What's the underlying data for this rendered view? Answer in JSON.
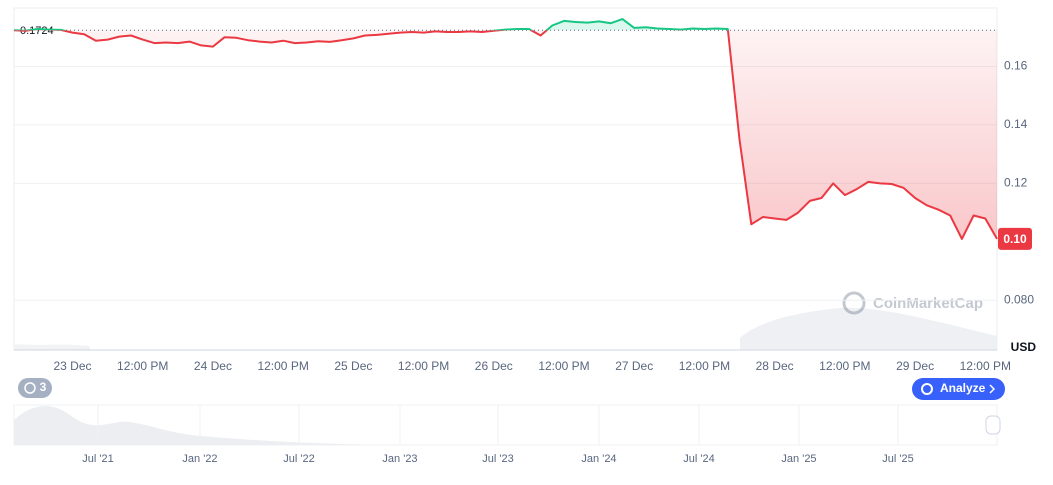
{
  "chart_data": {
    "type": "line",
    "categories": [
      null,
      null,
      null,
      null,
      null,
      "23 Dec",
      null,
      null,
      null,
      null,
      null,
      "12:00 PM",
      null,
      null,
      null,
      null,
      null,
      "24 Dec",
      null,
      null,
      null,
      null,
      null,
      "12:00 PM",
      null,
      null,
      null,
      null,
      null,
      "25 Dec",
      null,
      null,
      null,
      null,
      null,
      "12:00 PM",
      null,
      null,
      null,
      null,
      null,
      "26 Dec",
      null,
      null,
      null,
      null,
      null,
      "12:00 PM",
      null,
      null,
      null,
      null,
      null,
      "27 Dec",
      null,
      null,
      null,
      null,
      null,
      "12:00 PM",
      null,
      null,
      null,
      null,
      null,
      "28 Dec",
      null,
      null,
      null,
      null,
      null,
      "12:00 PM",
      null,
      null,
      null,
      null,
      null,
      "29 Dec",
      null,
      null,
      null,
      null,
      null,
      "12:00 PM",
      null
    ],
    "series": [
      {
        "values": [
          0.1724,
          0.1722,
          0.1728,
          0.1726,
          0.1725,
          0.1716,
          0.171,
          0.1688,
          0.1692,
          0.1702,
          0.1706,
          0.1692,
          0.168,
          0.1682,
          0.168,
          0.1685,
          0.1672,
          0.1668,
          0.17,
          0.1698,
          0.169,
          0.1685,
          0.1682,
          0.1688,
          0.168,
          0.1682,
          0.1686,
          0.1684,
          0.169,
          0.1696,
          0.1706,
          0.1708,
          0.1712,
          0.1716,
          0.1718,
          0.1716,
          0.172,
          0.1718,
          0.1718,
          0.172,
          0.1718,
          0.1722,
          0.1726,
          0.1728,
          0.1728,
          0.1706,
          0.174,
          0.1756,
          0.1752,
          0.175,
          0.1754,
          0.1748,
          0.1762,
          0.1732,
          0.1734,
          0.173,
          0.1728,
          0.1726,
          0.173,
          0.1728,
          0.173,
          0.1728,
          0.135,
          0.106,
          0.1085,
          0.108,
          0.1075,
          0.11,
          0.114,
          0.115,
          0.12,
          0.116,
          0.118,
          0.1205,
          0.12,
          0.1198,
          0.1185,
          0.115,
          0.1125,
          0.111,
          0.109,
          0.101,
          0.109,
          0.108,
          0.101
        ]
      }
    ],
    "up_color": "#16c784",
    "down_color": "#ea3943",
    "baseline": 0.1724,
    "ylim": [
      0.063,
      0.18
    ],
    "yticks": [
      {
        "value": 0.08,
        "label": "0.080"
      },
      0.12,
      0.14,
      0.16
    ],
    "grid": true,
    "y_unit": "USD",
    "price_tag": "0.10",
    "watermark": "CoinMarketCap",
    "navigator_labels": [
      "Jul '21",
      "Jan '22",
      "Jul '22",
      "Jan '23",
      "Jul '23",
      "Jan '24",
      "Jul '24",
      "Jan '25",
      "Jul '25"
    ]
  },
  "ui": {
    "badge_count": "3",
    "analyze_button": "Analyze"
  }
}
